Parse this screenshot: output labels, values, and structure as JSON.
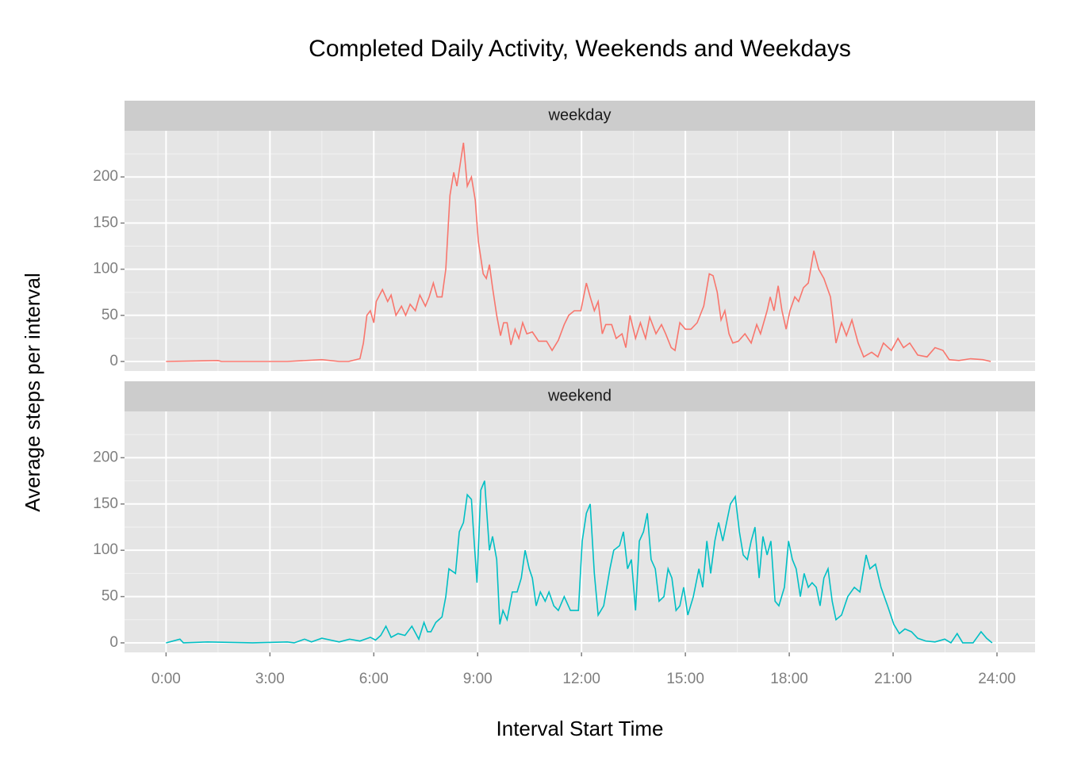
{
  "title": "Completed Daily Activity, Weekends and Weekdays",
  "x_label": "Interval Start Time",
  "y_label": "Average steps per interval",
  "xlim": [
    -1.2,
    25.1
  ],
  "xticks": [
    {
      "value": 0,
      "label": "0:00"
    },
    {
      "value": 3,
      "label": "3:00"
    },
    {
      "value": 6,
      "label": "6:00"
    },
    {
      "value": 9,
      "label": "9:00"
    },
    {
      "value": 12,
      "label": "12:00"
    },
    {
      "value": 15,
      "label": "15:00"
    },
    {
      "value": 18,
      "label": "18:00"
    },
    {
      "value": 21,
      "label": "21:00"
    },
    {
      "value": 24,
      "label": "24:00"
    }
  ],
  "chart_data": [
    {
      "type": "line",
      "title": "weekday",
      "color": "#F8766D",
      "ylim": [
        -10.3,
        250
      ],
      "yticks": [
        0,
        50,
        100,
        150,
        200
      ],
      "grid": true,
      "x": [
        0,
        1.5,
        1.6,
        3.5,
        4.5,
        5.0,
        5.27,
        5.6,
        5.7,
        5.8,
        5.9,
        6.0,
        6.07,
        6.25,
        6.4,
        6.5,
        6.64,
        6.8,
        6.92,
        7.05,
        7.2,
        7.33,
        7.49,
        7.6,
        7.72,
        7.83,
        7.97,
        8.08,
        8.2,
        8.31,
        8.4,
        8.52,
        8.59,
        8.7,
        8.82,
        8.93,
        9.02,
        9.16,
        9.25,
        9.34,
        9.43,
        9.55,
        9.66,
        9.75,
        9.85,
        9.96,
        10.08,
        10.19,
        10.3,
        10.42,
        10.58,
        10.76,
        10.99,
        11.15,
        11.33,
        11.5,
        11.63,
        11.79,
        11.98,
        12.14,
        12.25,
        12.37,
        12.48,
        12.6,
        12.7,
        12.87,
        13.0,
        13.17,
        13.28,
        13.4,
        13.56,
        13.7,
        13.85,
        13.97,
        14.15,
        14.31,
        14.43,
        14.59,
        14.7,
        14.84,
        15.0,
        15.16,
        15.34,
        15.53,
        15.69,
        15.8,
        15.92,
        16.03,
        16.14,
        16.26,
        16.37,
        16.53,
        16.72,
        16.9,
        17.06,
        17.17,
        17.36,
        17.45,
        17.56,
        17.68,
        17.79,
        17.91,
        18.02,
        18.16,
        18.27,
        18.41,
        18.55,
        18.71,
        18.85,
        19.0,
        19.19,
        19.35,
        19.51,
        19.65,
        19.81,
        19.99,
        20.15,
        20.38,
        20.56,
        20.72,
        20.95,
        21.14,
        21.3,
        21.48,
        21.71,
        21.98,
        22.21,
        22.44,
        22.62,
        22.9,
        23.24,
        23.59,
        23.82
      ],
      "values": [
        0,
        1,
        0,
        0,
        2,
        0,
        0,
        3,
        20,
        50,
        55,
        42,
        65,
        78,
        65,
        72,
        50,
        60,
        50,
        62,
        55,
        72,
        60,
        70,
        85,
        70,
        70,
        100,
        180,
        205,
        190,
        220,
        237,
        190,
        200,
        175,
        130,
        95,
        90,
        105,
        80,
        50,
        28,
        42,
        42,
        18,
        35,
        25,
        42,
        30,
        32,
        22,
        22,
        12,
        23,
        40,
        50,
        55,
        55,
        85,
        70,
        55,
        65,
        30,
        40,
        40,
        25,
        30,
        15,
        50,
        25,
        42,
        25,
        48,
        30,
        40,
        30,
        15,
        12,
        42,
        35,
        35,
        42,
        60,
        95,
        93,
        75,
        45,
        55,
        30,
        20,
        22,
        30,
        20,
        40,
        30,
        55,
        70,
        55,
        82,
        55,
        35,
        55,
        70,
        65,
        80,
        85,
        120,
        100,
        90,
        70,
        20,
        42,
        28,
        45,
        20,
        5,
        10,
        5,
        20,
        12,
        25,
        15,
        20,
        7,
        5,
        15,
        12,
        2,
        1,
        3,
        2,
        0
      ]
    },
    {
      "type": "line",
      "title": "weekend",
      "color": "#00BFC4",
      "ylim": [
        -10.3,
        250
      ],
      "yticks": [
        0,
        50,
        100,
        150,
        200
      ],
      "grid": true,
      "x": [
        0,
        0.4,
        0.5,
        1.2,
        2.5,
        3.5,
        3.7,
        4.0,
        4.2,
        4.5,
        5.0,
        5.3,
        5.6,
        5.9,
        6.05,
        6.2,
        6.35,
        6.5,
        6.7,
        6.9,
        7.1,
        7.3,
        7.45,
        7.55,
        7.65,
        7.79,
        7.97,
        8.08,
        8.17,
        8.36,
        8.47,
        8.59,
        8.7,
        8.82,
        8.88,
        8.98,
        9.09,
        9.2,
        9.34,
        9.43,
        9.55,
        9.64,
        9.73,
        9.85,
        10.0,
        10.14,
        10.26,
        10.37,
        10.49,
        10.58,
        10.69,
        10.81,
        10.95,
        11.06,
        11.2,
        11.33,
        11.5,
        11.68,
        11.91,
        12.02,
        12.14,
        12.25,
        12.37,
        12.48,
        12.64,
        12.82,
        12.93,
        13.1,
        13.21,
        13.33,
        13.44,
        13.56,
        13.67,
        13.79,
        13.9,
        14.01,
        14.13,
        14.24,
        14.38,
        14.5,
        14.61,
        14.73,
        14.84,
        14.95,
        15.07,
        15.23,
        15.39,
        15.5,
        15.62,
        15.73,
        15.85,
        15.96,
        16.08,
        16.19,
        16.3,
        16.44,
        16.56,
        16.67,
        16.79,
        16.9,
        17.01,
        17.13,
        17.24,
        17.36,
        17.47,
        17.59,
        17.7,
        17.86,
        17.98,
        18.09,
        18.2,
        18.32,
        18.43,
        18.55,
        18.66,
        18.78,
        18.89,
        19.0,
        19.12,
        19.24,
        19.35,
        19.51,
        19.69,
        19.88,
        20.04,
        20.22,
        20.33,
        20.49,
        20.65,
        20.84,
        21.02,
        21.18,
        21.34,
        21.53,
        21.71,
        21.94,
        22.21,
        22.49,
        22.67,
        22.85,
        23.01,
        23.31,
        23.54,
        23.7,
        23.86
      ],
      "values": [
        0,
        4,
        0,
        1,
        0,
        1,
        0,
        4,
        1,
        5,
        1,
        4,
        2,
        6,
        3,
        8,
        18,
        6,
        10,
        8,
        18,
        4,
        22,
        12,
        12,
        22,
        28,
        50,
        80,
        75,
        120,
        130,
        160,
        155,
        120,
        65,
        165,
        175,
        100,
        115,
        90,
        20,
        35,
        25,
        55,
        55,
        70,
        100,
        80,
        70,
        40,
        55,
        45,
        55,
        40,
        35,
        50,
        35,
        35,
        110,
        140,
        150,
        75,
        30,
        40,
        80,
        100,
        105,
        120,
        80,
        90,
        35,
        110,
        120,
        140,
        90,
        80,
        45,
        50,
        80,
        70,
        35,
        40,
        60,
        30,
        50,
        80,
        60,
        110,
        75,
        110,
        130,
        110,
        130,
        150,
        158,
        120,
        95,
        90,
        110,
        125,
        70,
        115,
        95,
        110,
        45,
        40,
        60,
        110,
        90,
        80,
        50,
        75,
        60,
        65,
        60,
        40,
        70,
        80,
        45,
        25,
        30,
        50,
        60,
        55,
        95,
        80,
        85,
        60,
        40,
        20,
        10,
        15,
        12,
        5,
        2,
        1,
        4,
        0,
        10,
        0,
        0,
        12,
        5,
        0
      ]
    }
  ]
}
